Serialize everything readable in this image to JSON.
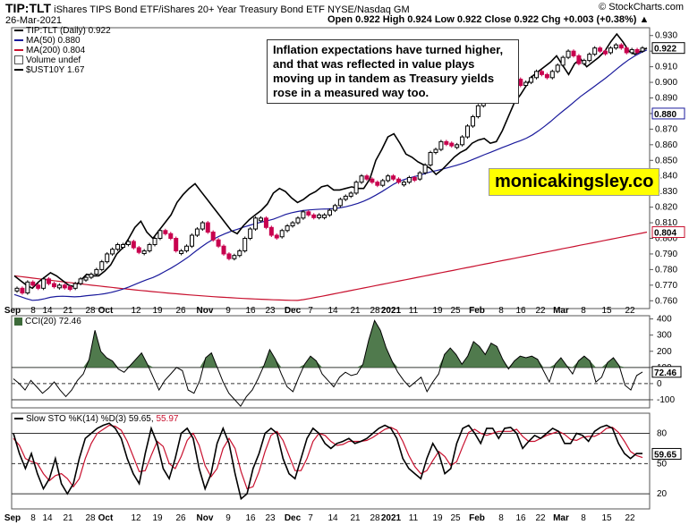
{
  "header": {
    "symbol": "TIP:TLT",
    "description": "iShares TIPS Bond ETF/iShares 20+ Year Treasury Bond ETF  NYSE/Nasdaq GM",
    "watermark": "© StockCharts.com",
    "date": "26-Mar-2021",
    "ohlc_label": "Open 0.922  High 0.924  Low 0.922  Close 0.922  Chg +0.003 (+0.38%) ▲"
  },
  "annotation": "Inflation expectations have turned higher, and that was reflected in value plays moving up in tandem as Treasury yields rose in a measured way too.",
  "brand": "monicakingsley.co",
  "colors": {
    "price": "#000000",
    "ma50": "#1a1a9c",
    "ma200": "#c8102e",
    "area": "#3d6b3a",
    "down": "#c8004e"
  },
  "chart_data": [
    {
      "type": "line",
      "name": "price_panel",
      "legend": [
        "TIP:TLT (Daily) 0.922",
        "MA(50) 0.880",
        "MA(200) 0.804",
        "Volume undef",
        "$UST10Y 1.67"
      ],
      "ylim": [
        0.755,
        0.935
      ],
      "yticks": [
        0.76,
        0.77,
        0.78,
        0.79,
        0.8,
        0.81,
        0.82,
        0.83,
        0.84,
        0.85,
        0.86,
        0.87,
        0.88,
        0.89,
        0.9,
        0.91,
        0.92,
        0.93
      ],
      "ytick_labels": [
        "0.760",
        "0.770",
        "0.780",
        "0.790",
        "0.800",
        "0.810",
        "0.820",
        "0.830",
        "0.840",
        "0.850",
        "0.860",
        "0.870",
        "0.880",
        "0.890",
        "0.900",
        "0.910",
        "0.920",
        "0.930"
      ],
      "value_tags": [
        {
          "label": "0.922",
          "value": 0.922,
          "style": "price"
        },
        {
          "label": "0.880",
          "value": 0.88,
          "style": "ma50"
        },
        {
          "label": "0.804",
          "value": 0.804,
          "style": "ma200"
        }
      ],
      "xlabels": [
        "Sep",
        "8",
        "14",
        "21",
        "28",
        "Oct",
        "12",
        "19",
        "26",
        "Nov",
        "9",
        "16",
        "23",
        "Dec",
        "7",
        "14",
        "21",
        "28",
        "2021",
        "11",
        "19",
        "25",
        "Feb",
        "8",
        "16",
        "22",
        "Mar",
        "8",
        "15",
        "22"
      ],
      "close": [
        0.768,
        0.765,
        0.772,
        0.77,
        0.768,
        0.774,
        0.771,
        0.769,
        0.77,
        0.769,
        0.768,
        0.771,
        0.774,
        0.775,
        0.777,
        0.78,
        0.785,
        0.79,
        0.793,
        0.796,
        0.796,
        0.798,
        0.794,
        0.791,
        0.792,
        0.796,
        0.8,
        0.805,
        0.803,
        0.8,
        0.792,
        0.792,
        0.795,
        0.802,
        0.806,
        0.81,
        0.804,
        0.799,
        0.795,
        0.79,
        0.787,
        0.789,
        0.792,
        0.8,
        0.806,
        0.813,
        0.813,
        0.807,
        0.802,
        0.801,
        0.805,
        0.808,
        0.81,
        0.813,
        0.817,
        0.815,
        0.814,
        0.815,
        0.815,
        0.818,
        0.821,
        0.825,
        0.827,
        0.829,
        0.836,
        0.84,
        0.838,
        0.836,
        0.834,
        0.837,
        0.84,
        0.838,
        0.836,
        0.836,
        0.839,
        0.838,
        0.842,
        0.847,
        0.855,
        0.857,
        0.862,
        0.861,
        0.86,
        0.86,
        0.865,
        0.872,
        0.878,
        0.885,
        0.888,
        0.89,
        0.892,
        0.895,
        0.892,
        0.897,
        0.902,
        0.898,
        0.9,
        0.903,
        0.907,
        0.905,
        0.903,
        0.907,
        0.911,
        0.916,
        0.92,
        0.917,
        0.912,
        0.914,
        0.918,
        0.922,
        0.92,
        0.919,
        0.922,
        0.924,
        0.922,
        0.919,
        0.921,
        0.92,
        0.922
      ],
      "close_line": [
        0.776,
        0.773,
        0.77,
        0.768,
        0.772,
        0.775,
        0.778,
        0.776,
        0.773,
        0.77,
        0.769,
        0.773,
        0.777,
        0.776,
        0.776,
        0.779,
        0.783,
        0.79,
        0.794,
        0.8,
        0.807,
        0.811,
        0.804,
        0.8,
        0.805,
        0.81,
        0.815,
        0.823,
        0.828,
        0.832,
        0.835,
        0.83,
        0.825,
        0.82,
        0.815,
        0.81,
        0.805,
        0.803,
        0.808,
        0.812,
        0.815,
        0.818,
        0.822,
        0.829,
        0.832,
        0.83,
        0.826,
        0.823,
        0.825,
        0.828,
        0.83,
        0.833,
        0.834,
        0.831,
        0.831,
        0.832,
        0.833,
        0.832,
        0.832,
        0.838,
        0.85,
        0.857,
        0.865,
        0.867,
        0.861,
        0.854,
        0.852,
        0.849,
        0.847,
        0.845,
        0.841,
        0.844,
        0.848,
        0.852,
        0.855,
        0.857,
        0.861,
        0.863,
        0.864,
        0.861,
        0.862,
        0.869,
        0.878,
        0.887,
        0.892,
        0.898,
        0.904,
        0.907,
        0.91,
        0.913,
        0.917,
        0.911,
        0.905,
        0.912,
        0.915,
        0.91,
        0.913,
        0.916,
        0.92,
        0.926,
        0.931,
        0.926,
        0.92,
        0.918,
        0.92,
        0.922
      ]
    },
    {
      "type": "area",
      "name": "cci_panel",
      "legend": "CCI(20) 72.46",
      "ylim": [
        -150,
        420
      ],
      "yticks": [
        -100,
        0,
        100,
        200,
        300,
        400
      ],
      "ytick_labels": [
        "-100",
        "0",
        "100",
        "200",
        "300",
        "400"
      ],
      "value_tag": "72.46",
      "values": [
        30,
        0,
        -40,
        20,
        -20,
        -60,
        -30,
        10,
        -40,
        -80,
        -40,
        20,
        60,
        150,
        330,
        200,
        160,
        140,
        90,
        70,
        110,
        150,
        190,
        120,
        40,
        -40,
        20,
        60,
        100,
        80,
        -40,
        -60,
        20,
        160,
        190,
        100,
        10,
        -60,
        -100,
        -140,
        -80,
        -40,
        30,
        110,
        210,
        150,
        60,
        -20,
        -50,
        40,
        120,
        170,
        140,
        60,
        20,
        -20,
        40,
        70,
        50,
        60,
        120,
        270,
        390,
        330,
        220,
        140,
        70,
        20,
        -20,
        10,
        40,
        -50,
        10,
        60,
        180,
        220,
        180,
        120,
        170,
        260,
        230,
        180,
        250,
        230,
        150,
        90,
        140,
        170,
        160,
        170,
        150,
        80,
        10,
        120,
        160,
        110,
        60,
        140,
        170,
        140,
        10,
        40,
        130,
        160,
        110,
        -10,
        -40,
        50,
        72
      ]
    },
    {
      "type": "line",
      "name": "sto_panel",
      "legend": [
        "Slow STO %K(14) %D(3) 59.65,",
        "55.97"
      ],
      "ylim": [
        5,
        100
      ],
      "yticks": [
        20,
        50,
        80
      ],
      "ytick_labels": [
        "20",
        "50",
        "80"
      ],
      "value_tag": "59.65",
      "k": [
        80,
        60,
        45,
        60,
        40,
        25,
        35,
        55,
        30,
        20,
        30,
        55,
        75,
        80,
        85,
        88,
        90,
        85,
        75,
        55,
        40,
        30,
        60,
        85,
        70,
        45,
        35,
        55,
        80,
        85,
        75,
        45,
        25,
        40,
        70,
        85,
        70,
        40,
        15,
        20,
        45,
        60,
        80,
        85,
        80,
        55,
        40,
        35,
        55,
        75,
        85,
        80,
        70,
        65,
        70,
        72,
        75,
        70,
        72,
        75,
        80,
        85,
        88,
        85,
        75,
        55,
        45,
        40,
        35,
        55,
        70,
        60,
        40,
        45,
        70,
        85,
        88,
        80,
        70,
        85,
        85,
        75,
        85,
        86,
        80,
        65,
        72,
        78,
        75,
        80,
        85,
        82,
        70,
        70,
        80,
        78,
        72,
        82,
        86,
        88,
        85,
        70,
        60,
        55,
        60,
        60
      ],
      "d": [
        75,
        68,
        55,
        52,
        50,
        40,
        33,
        38,
        40,
        35,
        27,
        35,
        55,
        70,
        80,
        84,
        88,
        87,
        83,
        72,
        57,
        42,
        43,
        58,
        72,
        67,
        50,
        45,
        57,
        73,
        80,
        68,
        48,
        37,
        45,
        65,
        75,
        65,
        42,
        25,
        27,
        42,
        62,
        78,
        82,
        73,
        58,
        43,
        43,
        55,
        72,
        80,
        78,
        72,
        68,
        69,
        72,
        72,
        72,
        73,
        76,
        80,
        84,
        86,
        83,
        72,
        58,
        47,
        40,
        43,
        53,
        62,
        57,
        48,
        52,
        67,
        81,
        84,
        80,
        78,
        80,
        82,
        82,
        82,
        84,
        77,
        72,
        72,
        75,
        78,
        80,
        82,
        79,
        74,
        73,
        76,
        77,
        77,
        80,
        85,
        86,
        81,
        72,
        62,
        58,
        56
      ]
    }
  ],
  "xaxis_bottom": [
    "Sep",
    "8",
    "14",
    "21",
    "28",
    "Oct",
    "12",
    "19",
    "26",
    "Nov",
    "9",
    "16",
    "23",
    "Dec",
    "7",
    "14",
    "21",
    "28",
    "2021",
    "11",
    "19",
    "25",
    "Feb",
    "8",
    "16",
    "22",
    "Mar",
    "8",
    "15",
    "22"
  ]
}
